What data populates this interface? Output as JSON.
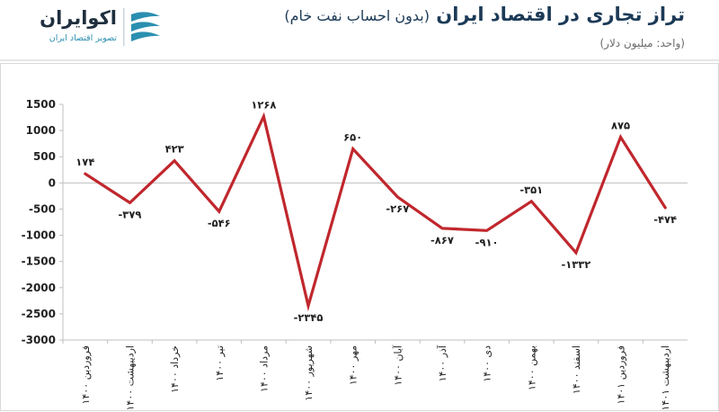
{
  "header": {
    "title": "تراز تجاری در اقتصاد ایران",
    "title_note": "(بدون احساب نفت خام)",
    "unit": "(واحد: میلیون دلار)"
  },
  "logo": {
    "name": "اکوایران",
    "tagline": "تصویر اقتصاد ایران"
  },
  "colors": {
    "series": "#c0272d",
    "title": "#1c3a57",
    "brand": "#2b8fb0"
  },
  "chart_data": {
    "type": "line",
    "title": "تراز تجاری در اقتصاد ایران",
    "ylim": [
      -3000,
      1500
    ],
    "yticks": [
      1500,
      1000,
      500,
      0,
      -500,
      -1000,
      -1500,
      -2000,
      -2500,
      -3000
    ],
    "ytick_labels": [
      "1500",
      "1000",
      "500",
      "0",
      "-500",
      "-1000",
      "-1500",
      "-2000",
      "-2500",
      "-3000"
    ],
    "grid": false,
    "categories": [
      "فروردین ۱۴۰۰",
      "اردیبهشت ۱۴۰۰",
      "خرداد ۱۴۰۰",
      "تیر ۱۴۰۰",
      "مرداد ۱۴۰۰",
      "شهریور ۱۴۰۰",
      "مهر ۱۴۰۰",
      "آبان ۱۴۰۰",
      "آذر ۱۴۰۰",
      "دی ۱۴۰۰",
      "بهمن ۱۴۰۰",
      "اسفند ۱۴۰۰",
      "فروردین ۱۴۰۱",
      "اردیبهشت ۱۴۰۱"
    ],
    "series": [
      {
        "values": [
          174,
          -379,
          423,
          -546,
          1268,
          -2345,
          650,
          -267,
          -867,
          -910,
          -351,
          -1332,
          875,
          -474
        ],
        "labels": [
          "۱۷۴",
          "-۳۷۹",
          "۴۲۳",
          "-۵۴۶",
          "۱۲۶۸",
          "-۲۳۴۵",
          "۶۵۰",
          "-۲۶۷",
          "-۸۶۷",
          "-۹۱۰",
          "-۳۵۱",
          "-۱۳۳۲",
          "۸۷۵",
          "-۴۷۴"
        ]
      }
    ]
  }
}
